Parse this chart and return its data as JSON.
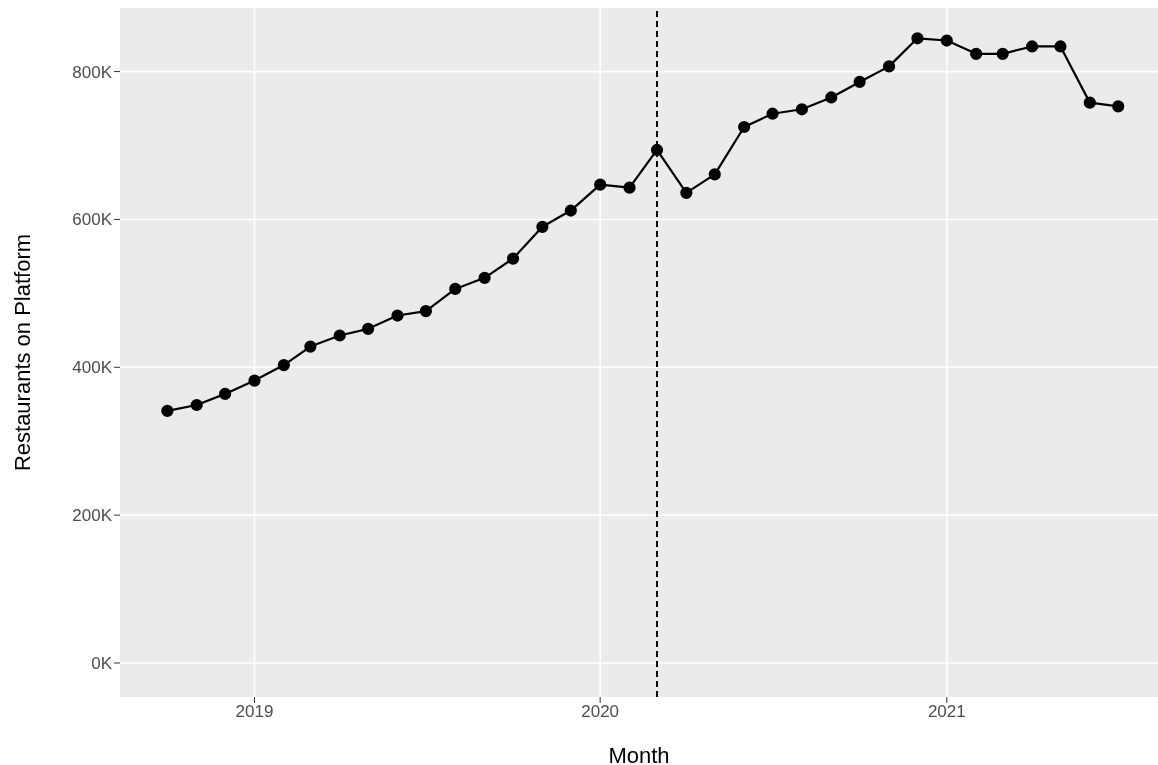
{
  "chart_data": {
    "type": "line",
    "xlabel": "Month",
    "ylabel": "Restaurants on Platform",
    "x": [
      "2018-10",
      "2018-11",
      "2018-12",
      "2019-01",
      "2019-02",
      "2019-03",
      "2019-04",
      "2019-05",
      "2019-06",
      "2019-07",
      "2019-08",
      "2019-09",
      "2019-10",
      "2019-11",
      "2019-12",
      "2020-01",
      "2020-02",
      "2020-03",
      "2020-04",
      "2020-05",
      "2020-06",
      "2020-07",
      "2020-08",
      "2020-09",
      "2020-10",
      "2020-11",
      "2020-12",
      "2021-01",
      "2021-02",
      "2021-03",
      "2021-04",
      "2021-05",
      "2021-06",
      "2021-07"
    ],
    "series": [
      {
        "color": "#000000",
        "values": [
          341,
          349,
          364,
          382,
          403,
          428,
          443,
          452,
          470,
          476,
          506,
          521,
          547,
          590,
          612,
          647,
          643,
          694,
          636,
          661,
          725,
          743,
          749,
          765,
          786,
          807,
          845,
          842,
          824,
          824,
          834,
          834,
          758,
          753
        ]
      }
    ],
    "xlim": [
      "2018-08-12",
      "2021-08-12"
    ],
    "xticks": [
      {
        "value": "2019-01-01",
        "label": "2019"
      },
      {
        "value": "2020-01-01",
        "label": "2020"
      },
      {
        "value": "2021-01-01",
        "label": "2021"
      }
    ],
    "ylim": [
      -46,
      886
    ],
    "yticks": [
      {
        "value": 0,
        "label": "0K"
      },
      {
        "value": 200,
        "label": "200K"
      },
      {
        "value": 400,
        "label": "400K"
      },
      {
        "value": 600,
        "label": "600K"
      },
      {
        "value": 800,
        "label": "800K"
      }
    ],
    "ref_lines": [
      {
        "axis": "x",
        "value": "2020-03-01",
        "color": "#000000",
        "line_style": "dashed"
      }
    ],
    "grid": true,
    "marker": "circle",
    "line_style": "solid"
  }
}
